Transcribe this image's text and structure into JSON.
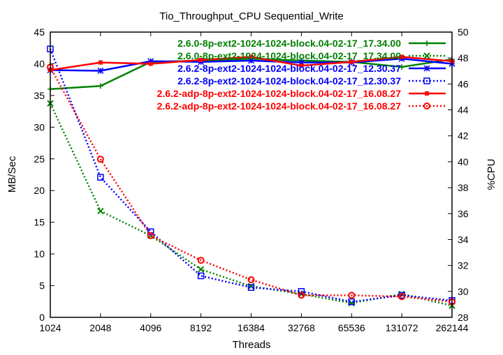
{
  "chart_data": {
    "type": "line",
    "title": "Tio_Throughput_CPU Sequential_Write",
    "xlabel": "Threads",
    "ylabel": "MB/Sec",
    "y2label": "%CPU",
    "categories": [
      "1024",
      "2048",
      "4096",
      "8192",
      "16384",
      "32768",
      "65536",
      "131072",
      "262144"
    ],
    "ylim": [
      0,
      45
    ],
    "yticks": [
      0,
      5,
      10,
      15,
      20,
      25,
      30,
      35,
      40,
      45
    ],
    "y2lim": [
      28,
      50
    ],
    "y2ticks": [
      28,
      30,
      32,
      34,
      36,
      38,
      40,
      42,
      44,
      46,
      48,
      50
    ],
    "grid": false,
    "legend_position": "top-right",
    "series": [
      {
        "name": "2.6.0-8p-ext2-1024-1024-block.04-02-17_17.34.00",
        "axis": "left",
        "style": "solid",
        "marker": "plus",
        "color": "#008000",
        "values": [
          36.0,
          36.5,
          40.3,
          40.5,
          40.8,
          40.5,
          40.3,
          39.5,
          40.7
        ]
      },
      {
        "name": "2.6.0-8p-ext2-1024-1024-block.04-02-17_17.34.00",
        "axis": "right",
        "style": "dotted",
        "marker": "x",
        "color": "#008000",
        "values": [
          44.5,
          36.2,
          34.3,
          31.7,
          30.4,
          29.8,
          29.1,
          29.8,
          28.9
        ]
      },
      {
        "name": "2.6.2-8p-ext2-1024-1024-block.04-02-17_12.30.37",
        "axis": "left",
        "style": "solid",
        "marker": "star",
        "color": "#0000ff",
        "values": [
          39.0,
          38.9,
          40.4,
          40.3,
          40.5,
          40.2,
          40.2,
          40.8,
          40.0
        ]
      },
      {
        "name": "2.6.2-8p-ext2-1024-1024-block.04-02-17_12.30.37",
        "axis": "right",
        "style": "dotted",
        "marker": "box",
        "color": "#0000ff",
        "values": [
          48.7,
          38.8,
          34.6,
          31.2,
          30.3,
          30.0,
          29.2,
          29.7,
          29.3
        ]
      },
      {
        "name": "2.6.2-adp-8p-ext2-1024-1024-block.04-02-17_16.08.27",
        "axis": "left",
        "style": "solid",
        "marker": "filledbox",
        "color": "#ff0000",
        "values": [
          39.0,
          40.2,
          40.0,
          40.6,
          41.1,
          39.7,
          40.3,
          41.1,
          40.4
        ]
      },
      {
        "name": "2.6.2-adp-8p-ext2-1024-1024-block.04-02-17_16.08.27",
        "axis": "right",
        "style": "dotted",
        "marker": "circle",
        "color": "#ff0000",
        "values": [
          47.3,
          40.2,
          34.3,
          32.4,
          30.9,
          29.7,
          29.7,
          29.6,
          29.2
        ]
      }
    ]
  }
}
